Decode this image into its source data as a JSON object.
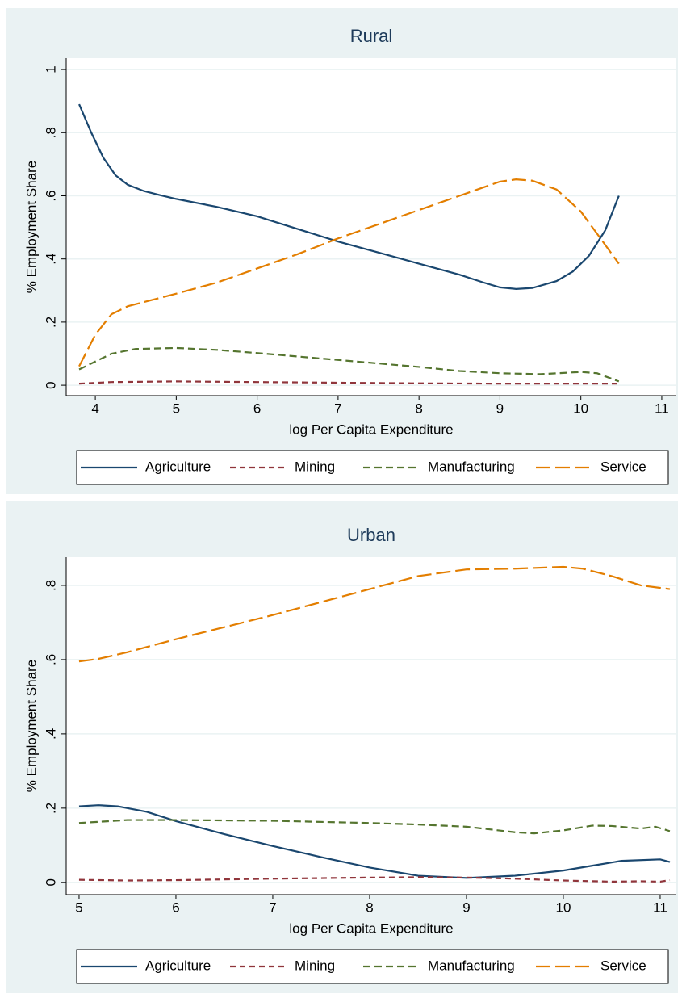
{
  "chart_data": [
    {
      "type": "line",
      "title": "Rural",
      "x_label": "log Per Capita Expenditure",
      "y_label": "% Employment Share",
      "xlim": [
        3.64,
        11.18
      ],
      "ylim": [
        -0.033,
        1.036
      ],
      "xticks": [
        4,
        5,
        6,
        7,
        8,
        9,
        10,
        11
      ],
      "yticks": [
        0,
        {
          "value": 0.2,
          "label": ".2"
        },
        {
          "value": 0.4,
          "label": ".4"
        },
        {
          "value": 0.6,
          "label": ".6"
        },
        {
          "value": 0.8,
          "label": ".8"
        },
        1
      ],
      "grid": true,
      "legend": "bottom",
      "series": [
        {
          "name": "Agriculture",
          "color": "#1a476f",
          "dash": "solid",
          "x": [
            3.8,
            3.95,
            4.1,
            4.25,
            4.4,
            4.6,
            4.8,
            5.0,
            5.5,
            6.0,
            6.5,
            7.0,
            7.5,
            8.0,
            8.5,
            8.8,
            9.0,
            9.2,
            9.4,
            9.7,
            9.9,
            10.1,
            10.3,
            10.47
          ],
          "values": [
            0.89,
            0.8,
            0.72,
            0.665,
            0.635,
            0.615,
            0.602,
            0.59,
            0.565,
            0.535,
            0.495,
            0.455,
            0.42,
            0.385,
            0.35,
            0.325,
            0.31,
            0.305,
            0.308,
            0.33,
            0.36,
            0.41,
            0.49,
            0.6
          ]
        },
        {
          "name": "Mining",
          "color": "#90353b",
          "dash": "short",
          "x": [
            3.8,
            4.2,
            5.0,
            6.0,
            7.0,
            8.0,
            9.0,
            10.47
          ],
          "values": [
            0.005,
            0.01,
            0.012,
            0.01,
            0.008,
            0.006,
            0.005,
            0.005
          ]
        },
        {
          "name": "Manufacturing",
          "color": "#55752f",
          "dash": "medium",
          "x": [
            3.8,
            4.0,
            4.2,
            4.5,
            5.0,
            5.5,
            6.0,
            7.0,
            8.0,
            8.5,
            9.0,
            9.5,
            10.0,
            10.2,
            10.47
          ],
          "values": [
            0.05,
            0.075,
            0.1,
            0.115,
            0.118,
            0.112,
            0.102,
            0.08,
            0.058,
            0.045,
            0.038,
            0.035,
            0.042,
            0.038,
            0.012
          ]
        },
        {
          "name": "Service",
          "color": "#e37e00",
          "dash": "long",
          "x": [
            3.8,
            4.0,
            4.2,
            4.4,
            5.0,
            5.5,
            6.0,
            6.5,
            7.0,
            7.5,
            8.0,
            8.5,
            9.0,
            9.2,
            9.4,
            9.7,
            10.0,
            10.2,
            10.47
          ],
          "values": [
            0.06,
            0.16,
            0.225,
            0.25,
            0.29,
            0.325,
            0.37,
            0.415,
            0.465,
            0.51,
            0.555,
            0.6,
            0.645,
            0.652,
            0.648,
            0.62,
            0.55,
            0.48,
            0.385
          ]
        }
      ]
    },
    {
      "type": "line",
      "title": "Urban",
      "x_label": "log Per Capita Expenditure",
      "y_label": "% Employment Share",
      "xlim": [
        4.867,
        11.167
      ],
      "ylim": [
        -0.033,
        0.876
      ],
      "xticks": [
        5,
        6,
        7,
        8,
        9,
        10,
        11
      ],
      "yticks": [
        0,
        {
          "value": 0.2,
          "label": ".2"
        },
        {
          "value": 0.4,
          "label": ".4"
        },
        {
          "value": 0.6,
          "label": ".6"
        },
        {
          "value": 0.8,
          "label": ".8"
        }
      ],
      "grid": true,
      "legend": "bottom",
      "series": [
        {
          "name": "Agriculture",
          "color": "#1a476f",
          "dash": "solid",
          "x": [
            5.0,
            5.2,
            5.4,
            5.7,
            6.0,
            6.5,
            7.0,
            7.5,
            8.0,
            8.5,
            9.0,
            9.5,
            10.0,
            10.3,
            10.6,
            11.0,
            11.1
          ],
          "values": [
            0.205,
            0.208,
            0.205,
            0.19,
            0.165,
            0.13,
            0.098,
            0.068,
            0.04,
            0.018,
            0.012,
            0.018,
            0.032,
            0.045,
            0.058,
            0.062,
            0.055
          ]
        },
        {
          "name": "Mining",
          "color": "#90353b",
          "dash": "short",
          "x": [
            5.0,
            5.5,
            6.0,
            7.0,
            8.0,
            8.5,
            9.0,
            9.5,
            10.0,
            10.5,
            10.8,
            11.0,
            11.1
          ],
          "values": [
            0.007,
            0.005,
            0.006,
            0.01,
            0.013,
            0.014,
            0.013,
            0.01,
            0.005,
            0.002,
            0.003,
            0.002,
            0.006
          ]
        },
        {
          "name": "Manufacturing",
          "color": "#55752f",
          "dash": "medium",
          "x": [
            5.0,
            5.5,
            6.0,
            7.0,
            8.0,
            8.5,
            9.0,
            9.5,
            9.7,
            10.0,
            10.3,
            10.5,
            10.8,
            10.95,
            11.1
          ],
          "values": [
            0.16,
            0.168,
            0.168,
            0.166,
            0.16,
            0.156,
            0.15,
            0.135,
            0.132,
            0.14,
            0.153,
            0.152,
            0.145,
            0.15,
            0.138
          ]
        },
        {
          "name": "Service",
          "color": "#e37e00",
          "dash": "long",
          "x": [
            5.0,
            5.2,
            5.5,
            6.0,
            7.0,
            8.0,
            8.5,
            9.0,
            9.5,
            10.0,
            10.2,
            10.5,
            10.8,
            11.1
          ],
          "values": [
            0.595,
            0.602,
            0.62,
            0.655,
            0.72,
            0.79,
            0.825,
            0.843,
            0.845,
            0.85,
            0.845,
            0.825,
            0.8,
            0.79
          ]
        }
      ]
    }
  ]
}
